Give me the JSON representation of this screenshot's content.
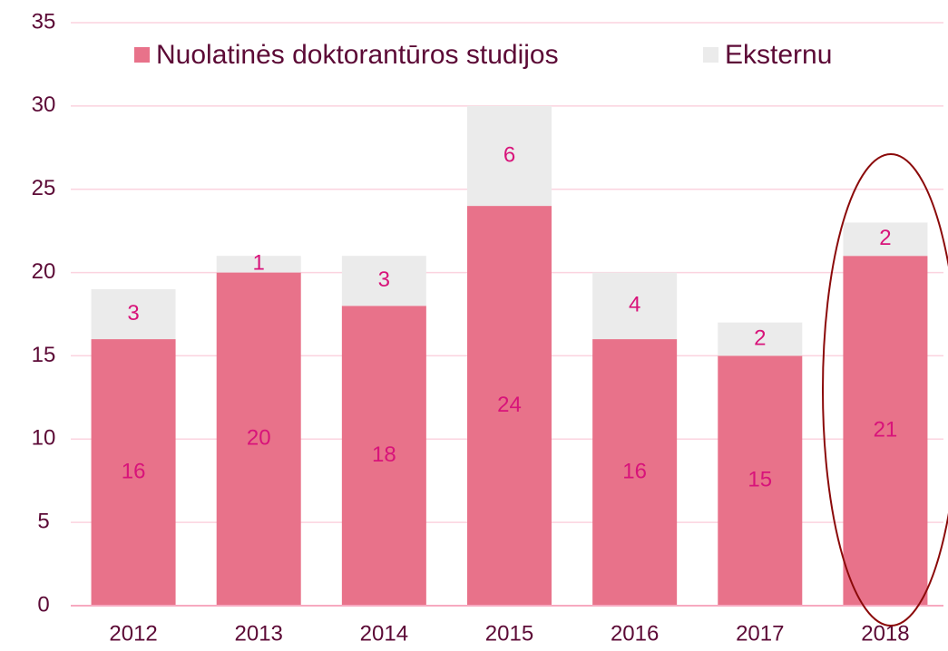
{
  "chart_data": {
    "type": "stacked_bar",
    "categories": [
      "2012",
      "2013",
      "2014",
      "2015",
      "2016",
      "2017",
      "2018"
    ],
    "series": [
      {
        "name": "Nuolatinės doktorantūros studijos",
        "color": "#e8728a",
        "values": [
          16,
          20,
          18,
          24,
          16,
          15,
          21
        ]
      },
      {
        "name": "Eksternu",
        "color": "#ebebeb",
        "values": [
          3,
          1,
          3,
          6,
          4,
          2,
          2
        ]
      }
    ],
    "ylim": [
      0,
      35
    ],
    "yticks": [
      0,
      5,
      10,
      15,
      20,
      25,
      30,
      35
    ],
    "grid": true
  }
}
